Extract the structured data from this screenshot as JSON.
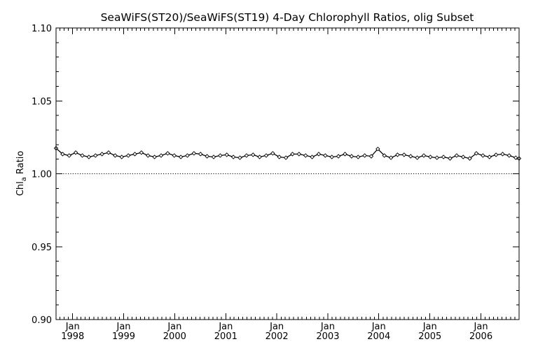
{
  "chart_data": {
    "type": "line",
    "title": "SeaWiFS(ST20)/SeaWiFS(ST19) 4-Day Chlorophyll Ratios, olig Subset",
    "ylabel": {
      "main": "Chl",
      "subscript": "a",
      "suffix": " Ratio"
    },
    "xlabel": "",
    "ylim": [
      0.9,
      1.1
    ],
    "yticks": [
      "1.10",
      "1.05",
      "1.00",
      "0.95",
      "0.90"
    ],
    "xlim": [
      "1997-09-04",
      "2006-10-01"
    ],
    "xticks": [
      {
        "month": "Jan",
        "year": "1998",
        "date": "1998-01-01"
      },
      {
        "month": "Jan",
        "year": "1999",
        "date": "1999-01-01"
      },
      {
        "month": "Jan",
        "year": "2000",
        "date": "2000-01-01"
      },
      {
        "month": "Jan",
        "year": "2001",
        "date": "2001-01-01"
      },
      {
        "month": "Jan",
        "year": "2002",
        "date": "2002-01-01"
      },
      {
        "month": "Jan",
        "year": "2003",
        "date": "2003-01-01"
      },
      {
        "month": "Jan",
        "year": "2004",
        "date": "2004-01-01"
      },
      {
        "month": "Jan",
        "year": "2005",
        "date": "2005-01-01"
      },
      {
        "month": "Jan",
        "year": "2006",
        "date": "2006-01-01"
      }
    ],
    "reference_line": {
      "y": 1.0,
      "style": "dotted"
    },
    "grid": false,
    "series": [
      {
        "marker": "diamond",
        "color": "#000000",
        "points": [
          [
            "1997-09-04",
            1.0175
          ],
          [
            "1997-10-21",
            1.0135
          ],
          [
            "1997-12-07",
            1.0125
          ],
          [
            "1998-01-23",
            1.0145
          ],
          [
            "1998-03-11",
            1.0125
          ],
          [
            "1998-04-27",
            1.0115
          ],
          [
            "1998-06-13",
            1.0125
          ],
          [
            "1998-07-30",
            1.0135
          ],
          [
            "1998-09-15",
            1.0145
          ],
          [
            "1998-11-01",
            1.0125
          ],
          [
            "1998-12-18",
            1.0115
          ],
          [
            "1999-02-03",
            1.0125
          ],
          [
            "1999-03-22",
            1.0135
          ],
          [
            "1999-05-08",
            1.0145
          ],
          [
            "1999-06-24",
            1.0125
          ],
          [
            "1999-08-10",
            1.0115
          ],
          [
            "1999-09-26",
            1.0125
          ],
          [
            "1999-11-12",
            1.014
          ],
          [
            "1999-12-29",
            1.0125
          ],
          [
            "2000-02-14",
            1.0115
          ],
          [
            "2000-04-01",
            1.0125
          ],
          [
            "2000-05-18",
            1.014
          ],
          [
            "2000-07-04",
            1.0135
          ],
          [
            "2000-08-20",
            1.012
          ],
          [
            "2000-10-06",
            1.0115
          ],
          [
            "2000-11-22",
            1.0125
          ],
          [
            "2001-01-08",
            1.013
          ],
          [
            "2001-02-24",
            1.0115
          ],
          [
            "2001-04-12",
            1.011
          ],
          [
            "2001-05-29",
            1.0125
          ],
          [
            "2001-07-15",
            1.013
          ],
          [
            "2001-08-31",
            1.0115
          ],
          [
            "2001-10-17",
            1.0125
          ],
          [
            "2001-12-03",
            1.014
          ],
          [
            "2002-01-19",
            1.0115
          ],
          [
            "2002-03-07",
            1.011
          ],
          [
            "2002-04-23",
            1.0135
          ],
          [
            "2002-06-09",
            1.0135
          ],
          [
            "2002-07-26",
            1.0125
          ],
          [
            "2002-09-11",
            1.0115
          ],
          [
            "2002-10-28",
            1.0135
          ],
          [
            "2002-12-14",
            1.0125
          ],
          [
            "2003-01-30",
            1.0115
          ],
          [
            "2003-03-18",
            1.012
          ],
          [
            "2003-05-04",
            1.0135
          ],
          [
            "2003-06-20",
            1.012
          ],
          [
            "2003-08-06",
            1.0115
          ],
          [
            "2003-09-22",
            1.0125
          ],
          [
            "2003-11-08",
            1.012
          ],
          [
            "2003-12-25",
            1.017
          ],
          [
            "2004-02-10",
            1.0125
          ],
          [
            "2004-03-28",
            1.011
          ],
          [
            "2004-05-14",
            1.013
          ],
          [
            "2004-06-30",
            1.013
          ],
          [
            "2004-08-16",
            1.012
          ],
          [
            "2004-10-02",
            1.011
          ],
          [
            "2004-11-18",
            1.0125
          ],
          [
            "2005-01-04",
            1.0115
          ],
          [
            "2005-02-20",
            1.011
          ],
          [
            "2005-04-08",
            1.0115
          ],
          [
            "2005-05-25",
            1.0105
          ],
          [
            "2005-07-11",
            1.0125
          ],
          [
            "2005-08-27",
            1.0115
          ],
          [
            "2005-10-13",
            1.0105
          ],
          [
            "2005-11-29",
            1.014
          ],
          [
            "2006-01-15",
            1.0125
          ],
          [
            "2006-03-03",
            1.0115
          ],
          [
            "2006-04-19",
            1.013
          ],
          [
            "2006-06-05",
            1.0135
          ],
          [
            "2006-07-22",
            1.0125
          ],
          [
            "2006-09-07",
            1.011
          ],
          [
            "2006-10-01",
            1.0105
          ]
        ]
      }
    ]
  }
}
